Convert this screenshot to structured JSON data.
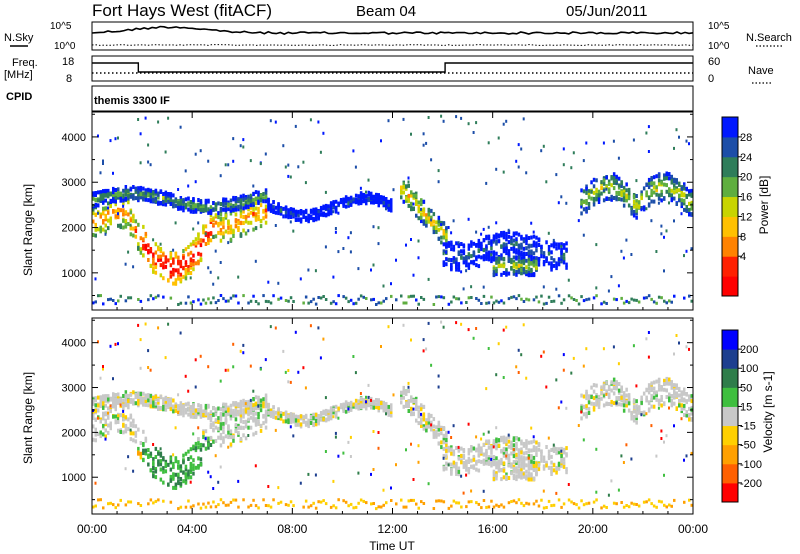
{
  "header": {
    "station": "Fort Hays West (fitACF)",
    "beam": "Beam 04",
    "date": "05/Jun/2011"
  },
  "top_panels": {
    "nsky_label": "N.Sky",
    "nsearch_label": "N.Search",
    "noise_ticks": [
      "10^5",
      "10^0"
    ],
    "freq_label": "Freq.",
    "freq_unit": "[MHz]",
    "freq_ticks": [
      "18",
      "8"
    ],
    "nave_label": "Nave",
    "nave_ticks": [
      "60",
      "0"
    ],
    "cpid_label": "CPID",
    "cpid_value": "themis 3300 IF"
  },
  "chart_data": [
    {
      "type": "heatmap",
      "name": "power",
      "xlabel": "Time UT",
      "ylabel": "Slant Range [km]",
      "x_ticks": [
        "00:00",
        "04:00",
        "08:00",
        "12:00",
        "16:00",
        "20:00",
        "00:00"
      ],
      "xlim_hours": [
        0,
        24
      ],
      "ylim_km": [
        180,
        4550
      ],
      "y_ticks": [
        1000,
        2000,
        3000,
        4000
      ],
      "colorbar": {
        "label": "Power [dB]",
        "ticks": [
          "28",
          "24",
          "20",
          "16",
          "12",
          "8",
          "4"
        ],
        "colors": [
          "#0018ff",
          "#1c4ea8",
          "#2f7d5a",
          "#5fae3f",
          "#c8d400",
          "#ffc000",
          "#ff8200",
          "#ff2000",
          "#ff0000"
        ]
      },
      "features": [
        {
          "desc": "main band",
          "from_h": 0.0,
          "to_h": 7.0,
          "range_km_start": 2000,
          "range_km_end": 2600
        },
        {
          "desc": "dip",
          "from_h": 2.0,
          "to_h": 4.5,
          "range_km": 900
        },
        {
          "desc": "band",
          "from_h": 7.0,
          "to_h": 12.0,
          "range_km_approx": 2400
        },
        {
          "desc": "arc",
          "from_h": 12.5,
          "to_h": 14.0,
          "range_km_approx": 2200
        },
        {
          "desc": "band",
          "from_h": 14.0,
          "to_h": 19.0,
          "range_km_approx": 1500
        },
        {
          "desc": "double arc",
          "from_h": 19.5,
          "to_h": 24.0,
          "range_km_approx": 2500
        }
      ]
    },
    {
      "type": "heatmap",
      "name": "velocity",
      "xlabel": "Time UT",
      "ylabel": "Slant Range [km]",
      "x_ticks": [
        "00:00",
        "04:00",
        "08:00",
        "12:00",
        "16:00",
        "20:00",
        "00:00"
      ],
      "xlim_hours": [
        0,
        24
      ],
      "ylim_km": [
        180,
        4550
      ],
      "y_ticks": [
        1000,
        2000,
        3000,
        4000
      ],
      "colorbar": {
        "label": "Velocity [m s-1]",
        "ticks": [
          "200",
          "100",
          "50",
          "15",
          "-15",
          "-50",
          "-100",
          "-200"
        ],
        "colors": [
          "#0000ff",
          "#1d3f8f",
          "#2f7d4a",
          "#3fbf3f",
          "#c8c8c8",
          "#ffd000",
          "#ffa000",
          "#ff6000",
          "#ff0000"
        ]
      }
    }
  ]
}
